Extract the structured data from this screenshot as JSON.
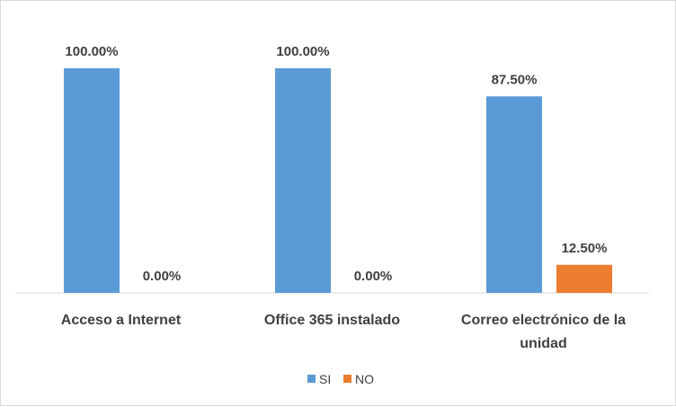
{
  "chart_data": {
    "type": "bar",
    "categories": [
      [
        "Acceso a Internet"
      ],
      [
        "Office 365 instalado"
      ],
      [
        "Correo electrónico de la",
        "unidad"
      ]
    ],
    "series": [
      {
        "name": "SI",
        "color": "#5b9bd5",
        "values": [
          100.0,
          100.0,
          87.5
        ],
        "labels": [
          "100.00%",
          "100.00%",
          "87.50%"
        ]
      },
      {
        "name": "NO",
        "color": "#ed7d31",
        "values": [
          0.0,
          0.0,
          12.5
        ],
        "labels": [
          "0.00%",
          "0.00%",
          "12.50%"
        ]
      }
    ],
    "ylim": [
      0,
      100
    ],
    "grid": false,
    "legend_position": "bottom"
  }
}
